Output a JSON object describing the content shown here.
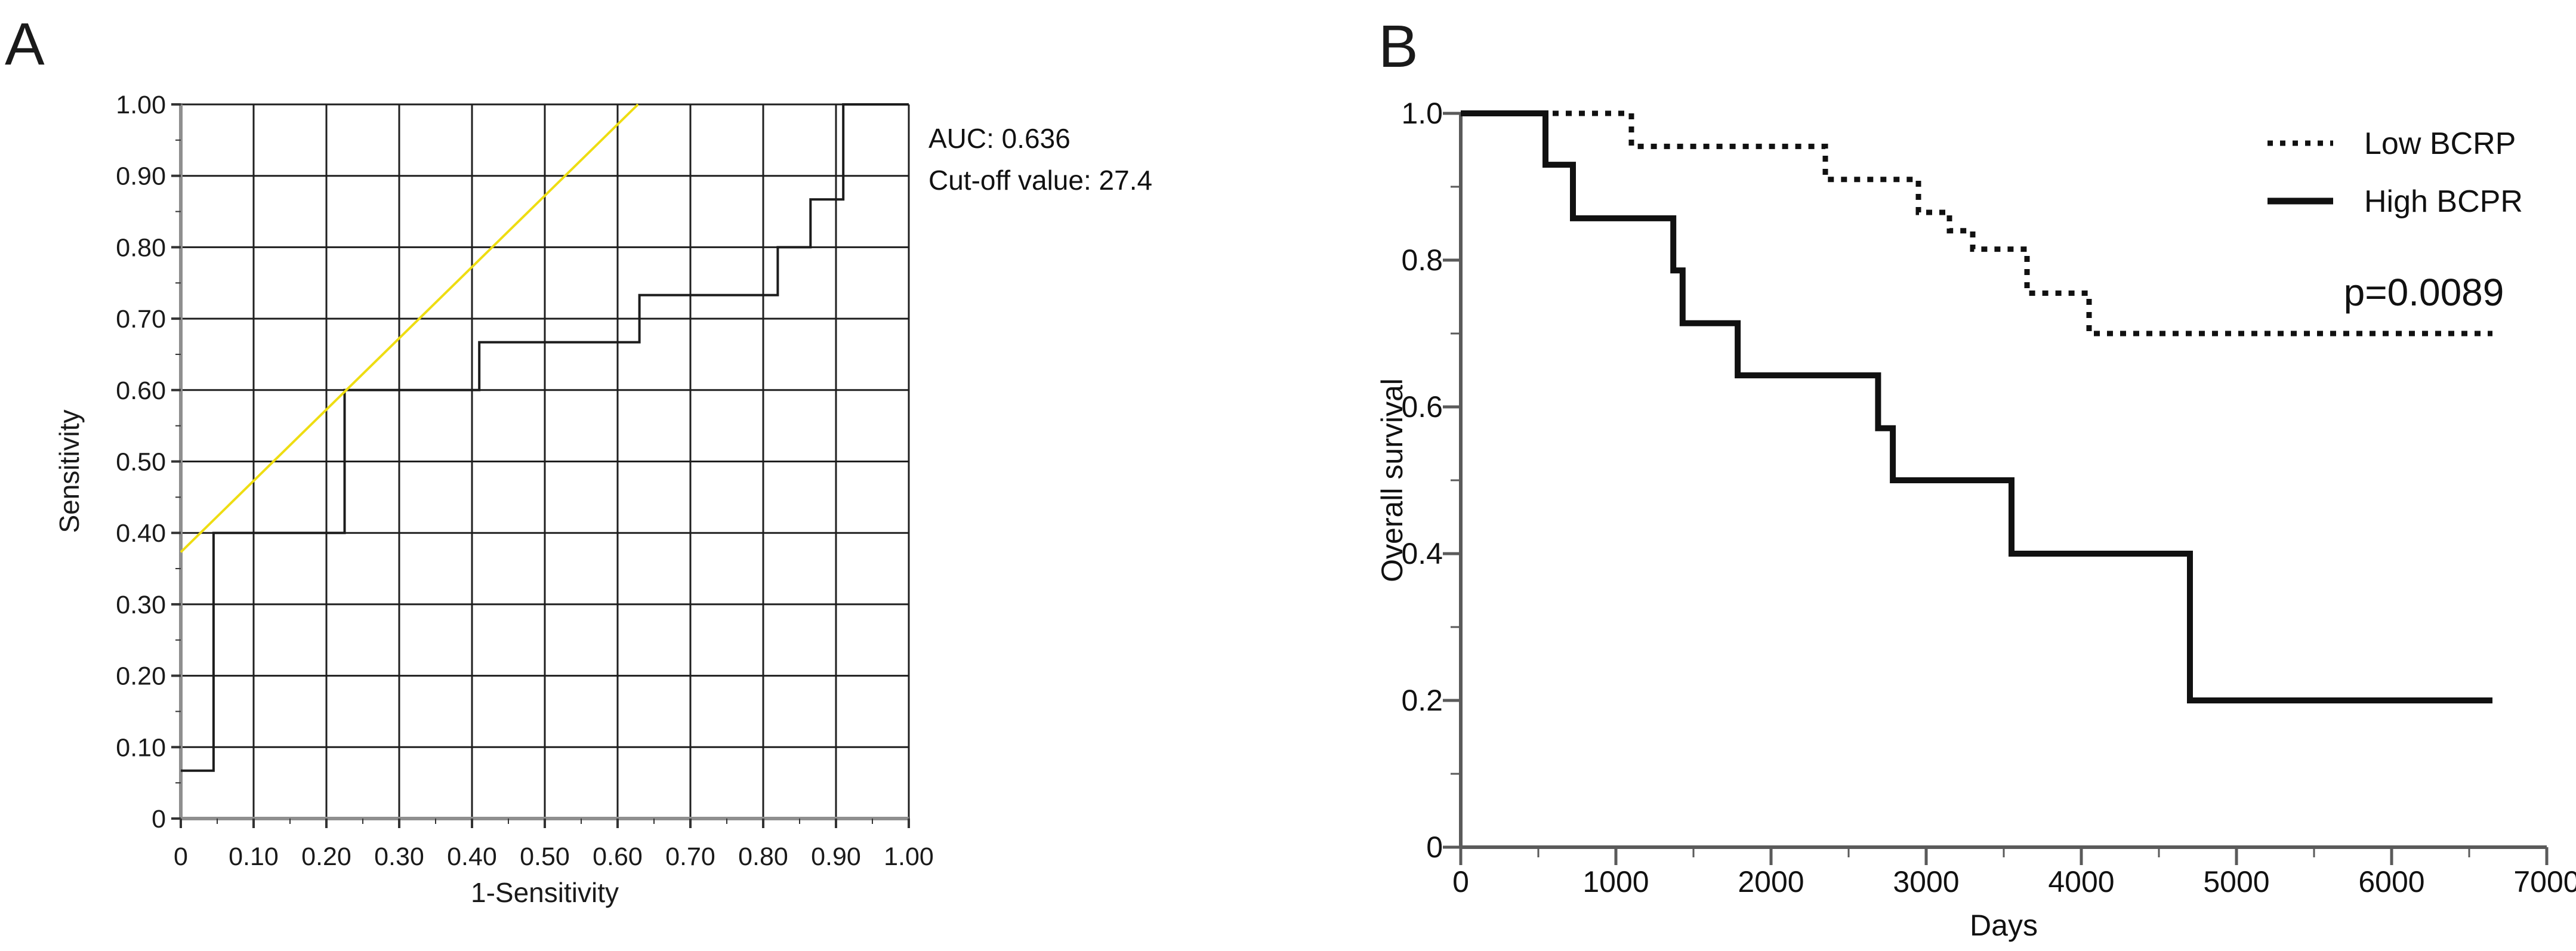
{
  "figure": {
    "background": "#ffffff",
    "panels": [
      {
        "label": "A"
      },
      {
        "label": "B"
      }
    ]
  },
  "chart_data": [
    {
      "id": "roc-curve-panel-a",
      "type": "line",
      "panel": "A",
      "title": "",
      "xlabel": "1-Sensitivity",
      "ylabel": "Sensitivity",
      "xlim": [
        0,
        1.0
      ],
      "ylim": [
        0,
        1.0
      ],
      "grid": "both-major",
      "x_major_ticks": [
        0,
        0.1,
        0.2,
        0.3,
        0.4,
        0.5,
        0.6,
        0.7,
        0.8,
        0.9,
        1.0
      ],
      "x_tick_labels": [
        "0",
        "0.10",
        "0.20",
        "0.30",
        "0.40",
        "0.50",
        "0.60",
        "0.70",
        "0.80",
        "0.90",
        "1.00"
      ],
      "x_minor_ticks": [
        0.05,
        0.15,
        0.25,
        0.35,
        0.45,
        0.55,
        0.65,
        0.75,
        0.85,
        0.95
      ],
      "y_major_ticks": [
        0,
        0.1,
        0.2,
        0.3,
        0.4,
        0.5,
        0.6,
        0.7,
        0.8,
        0.9,
        1.0
      ],
      "y_tick_labels": [
        "0",
        "0.10",
        "0.20",
        "0.30",
        "0.40",
        "0.50",
        "0.60",
        "0.70",
        "0.80",
        "0.90",
        "1.00"
      ],
      "y_minor_ticks": [
        0.05,
        0.15,
        0.25,
        0.35,
        0.45,
        0.55,
        0.65,
        0.75,
        0.85,
        0.95
      ],
      "annotations": [
        "AUC: 0.636",
        "Cut-off value: 27.4"
      ],
      "series": [
        {
          "name": "ROC curve",
          "style": "solid",
          "color": "#1c1c1c",
          "points": [
            [
              0,
              0.067
            ],
            [
              0.045,
              0.067
            ],
            [
              0.045,
              0.4
            ],
            [
              0.225,
              0.4
            ],
            [
              0.225,
              0.6
            ],
            [
              0.41,
              0.6
            ],
            [
              0.41,
              0.667
            ],
            [
              0.63,
              0.667
            ],
            [
              0.63,
              0.733
            ],
            [
              0.82,
              0.733
            ],
            [
              0.82,
              0.8
            ],
            [
              0.865,
              0.8
            ],
            [
              0.865,
              0.867
            ],
            [
              0.91,
              0.867
            ],
            [
              0.91,
              1.0
            ],
            [
              1.0,
              1.0
            ]
          ]
        },
        {
          "name": "Reference diagonal",
          "style": "solid",
          "color": "#eedd12",
          "points": [
            [
              0,
              0.373
            ],
            [
              0.628,
              1.0
            ]
          ]
        }
      ]
    },
    {
      "id": "kaplan-meier-panel-b",
      "type": "line",
      "panel": "B",
      "title": "",
      "xlabel": "Days",
      "ylabel": "Overall survival",
      "xlim": [
        0,
        7000
      ],
      "ylim": [
        0,
        1.0
      ],
      "grid": "none",
      "x_major_ticks": [
        0,
        1000,
        2000,
        3000,
        4000,
        5000,
        6000,
        7000
      ],
      "x_tick_labels": [
        "0",
        "1000",
        "2000",
        "3000",
        "4000",
        "5000",
        "6000",
        "7000"
      ],
      "x_minor_ticks": [
        500,
        1500,
        2500,
        3500,
        4500,
        5500,
        6500
      ],
      "y_major_ticks": [
        0,
        0.2,
        0.4,
        0.6,
        0.8,
        1.0
      ],
      "y_tick_labels": [
        "0",
        "0.2",
        "0.4",
        "0.6",
        "0.8",
        "1.0"
      ],
      "y_minor_ticks": [
        0.1,
        0.3,
        0.5,
        0.7,
        0.9
      ],
      "legend_position": "top-right",
      "p_value": "p=0.0089",
      "series": [
        {
          "name": "Low BCRP",
          "style": "dotted",
          "color": "#111111",
          "points": [
            [
              0,
              1.0
            ],
            [
              1100,
              1.0
            ],
            [
              1100,
              0.955
            ],
            [
              2350,
              0.955
            ],
            [
              2350,
              0.91
            ],
            [
              2950,
              0.91
            ],
            [
              2950,
              0.865
            ],
            [
              3150,
              0.865
            ],
            [
              3150,
              0.84
            ],
            [
              3300,
              0.84
            ],
            [
              3300,
              0.815
            ],
            [
              3650,
              0.815
            ],
            [
              3650,
              0.755
            ],
            [
              4050,
              0.755
            ],
            [
              4050,
              0.7
            ],
            [
              6650,
              0.7
            ]
          ]
        },
        {
          "name": "High BCPR",
          "style": "solid",
          "color": "#111111",
          "points": [
            [
              0,
              1.0
            ],
            [
              546,
              1.0
            ],
            [
              546,
              0.93
            ],
            [
              723,
              0.93
            ],
            [
              723,
              0.857
            ],
            [
              1370,
              0.857
            ],
            [
              1370,
              0.786
            ],
            [
              1430,
              0.786
            ],
            [
              1430,
              0.714
            ],
            [
              1785,
              0.714
            ],
            [
              1785,
              0.643
            ],
            [
              2690,
              0.643
            ],
            [
              2690,
              0.571
            ],
            [
              2785,
              0.571
            ],
            [
              2785,
              0.5
            ],
            [
              3550,
              0.5
            ],
            [
              3550,
              0.4
            ],
            [
              4700,
              0.4
            ],
            [
              4700,
              0.2
            ],
            [
              6650,
              0.2
            ]
          ]
        }
      ]
    }
  ]
}
